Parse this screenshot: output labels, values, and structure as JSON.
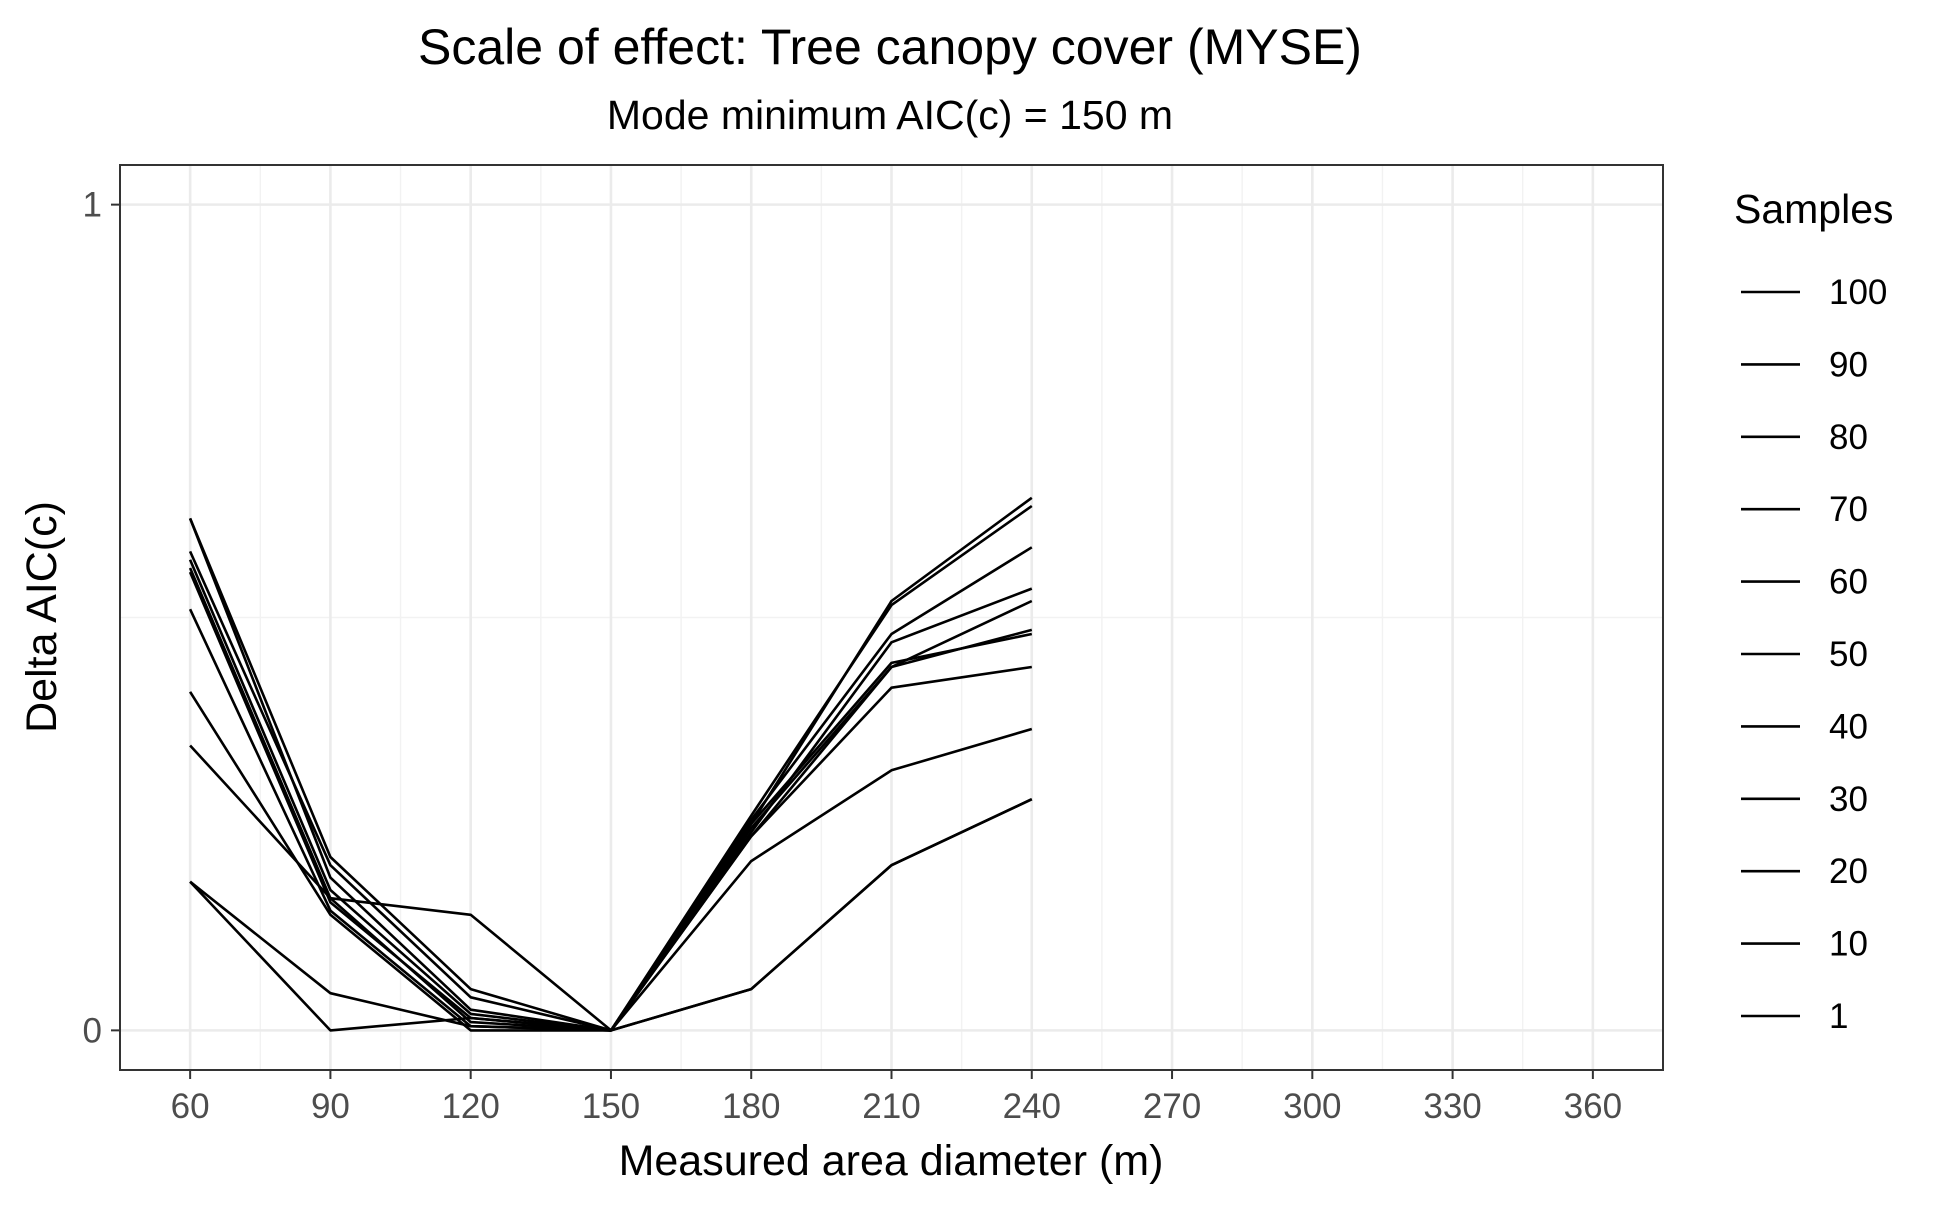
{
  "chart_data": {
    "type": "line",
    "title": "Scale of effect: Tree canopy cover (MYSE)",
    "subtitle": "Mode minimum AIC(c) = 150 m",
    "xlabel": "Measured area diameter (m)",
    "ylabel": "Delta AIC(c)",
    "xlim": [
      45,
      375
    ],
    "ylim": [
      -0.048,
      1.048
    ],
    "x_ticks": [
      60,
      90,
      120,
      150,
      180,
      210,
      240,
      270,
      300,
      330,
      360
    ],
    "y_ticks": [
      0,
      1
    ],
    "grid": true,
    "legend_position": "right",
    "legend_title": "Samples",
    "line_color": "#000000",
    "x": [
      60,
      90,
      120,
      150,
      180,
      210,
      240
    ],
    "series": [
      {
        "name": "100",
        "values": [
          0.62,
          0.21,
          0.05,
          0.0,
          0.25,
          0.52,
          0.645
        ]
      },
      {
        "name": "90",
        "values": [
          0.58,
          0.2,
          0.04,
          0.0,
          0.26,
          0.515,
          0.635
        ]
      },
      {
        "name": "80",
        "values": [
          0.62,
          0.185,
          0.025,
          0.0,
          0.255,
          0.48,
          0.585
        ]
      },
      {
        "name": "70",
        "values": [
          0.57,
          0.17,
          0.02,
          0.0,
          0.24,
          0.47,
          0.535
        ]
      },
      {
        "name": "60",
        "values": [
          0.56,
          0.16,
          0.01,
          0.0,
          0.245,
          0.44,
          0.52
        ]
      },
      {
        "name": "50",
        "values": [
          0.555,
          0.155,
          0.015,
          0.0,
          0.235,
          0.44,
          0.485
        ]
      },
      {
        "name": "40",
        "values": [
          0.51,
          0.145,
          0.005,
          0.0,
          0.25,
          0.445,
          0.48
        ]
      },
      {
        "name": "30",
        "values": [
          0.41,
          0.14,
          0.0,
          0.0,
          0.235,
          0.415,
          0.44
        ]
      },
      {
        "name": "20",
        "values": [
          0.345,
          0.16,
          0.14,
          0.0,
          0.205,
          0.315,
          0.365
        ]
      },
      {
        "name": "10",
        "values": [
          0.18,
          0.0,
          0.015,
          0.0,
          0.05,
          0.2,
          0.28
        ]
      },
      {
        "name": "1",
        "values": [
          0.18,
          0.045,
          0.005,
          0.0,
          0.05,
          0.2,
          0.28
        ]
      }
    ]
  }
}
